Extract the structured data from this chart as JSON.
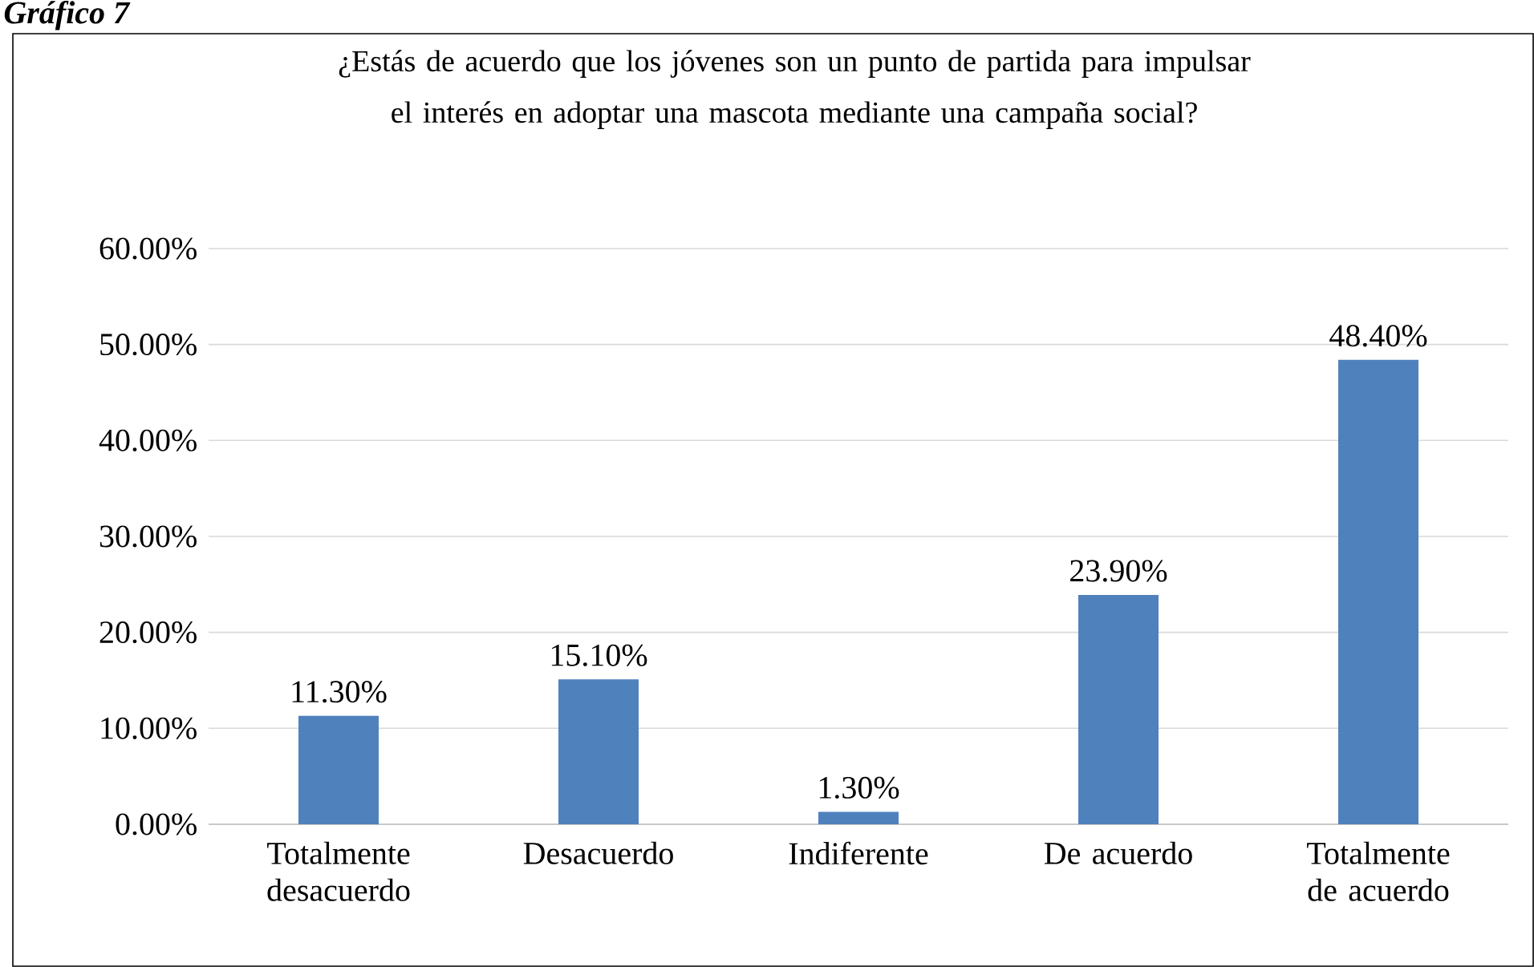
{
  "chart_data": {
    "type": "bar",
    "title": "¿Estás de acuerdo que los jóvenes son un punto de partida para impulsar el interés en adoptar una mascota mediante una campaña social?",
    "annotations": [
      "Gráfico 7"
    ],
    "categories": [
      "Totalmente desacuerdo",
      "Desacuerdo",
      "Indiferente",
      "De acuerdo",
      "Totalmente de acuerdo"
    ],
    "values": [
      11.3,
      15.1,
      1.3,
      23.9,
      48.4
    ],
    "value_labels": [
      "11.30%",
      "15.10%",
      "1.30%",
      "23.90%",
      "48.40%"
    ],
    "color": "#4f81bd",
    "ylim": [
      0,
      60
    ],
    "yticks": [
      {
        "value": 0,
        "label": "0.00%"
      },
      {
        "value": 10,
        "label": "10.00%"
      },
      {
        "value": 20,
        "label": "20.00%"
      },
      {
        "value": 30,
        "label": "30.00%"
      },
      {
        "value": 40,
        "label": "40.00%"
      },
      {
        "value": 50,
        "label": "50.00%"
      },
      {
        "value": 60,
        "label": "60.00%"
      }
    ],
    "grid": "y"
  }
}
